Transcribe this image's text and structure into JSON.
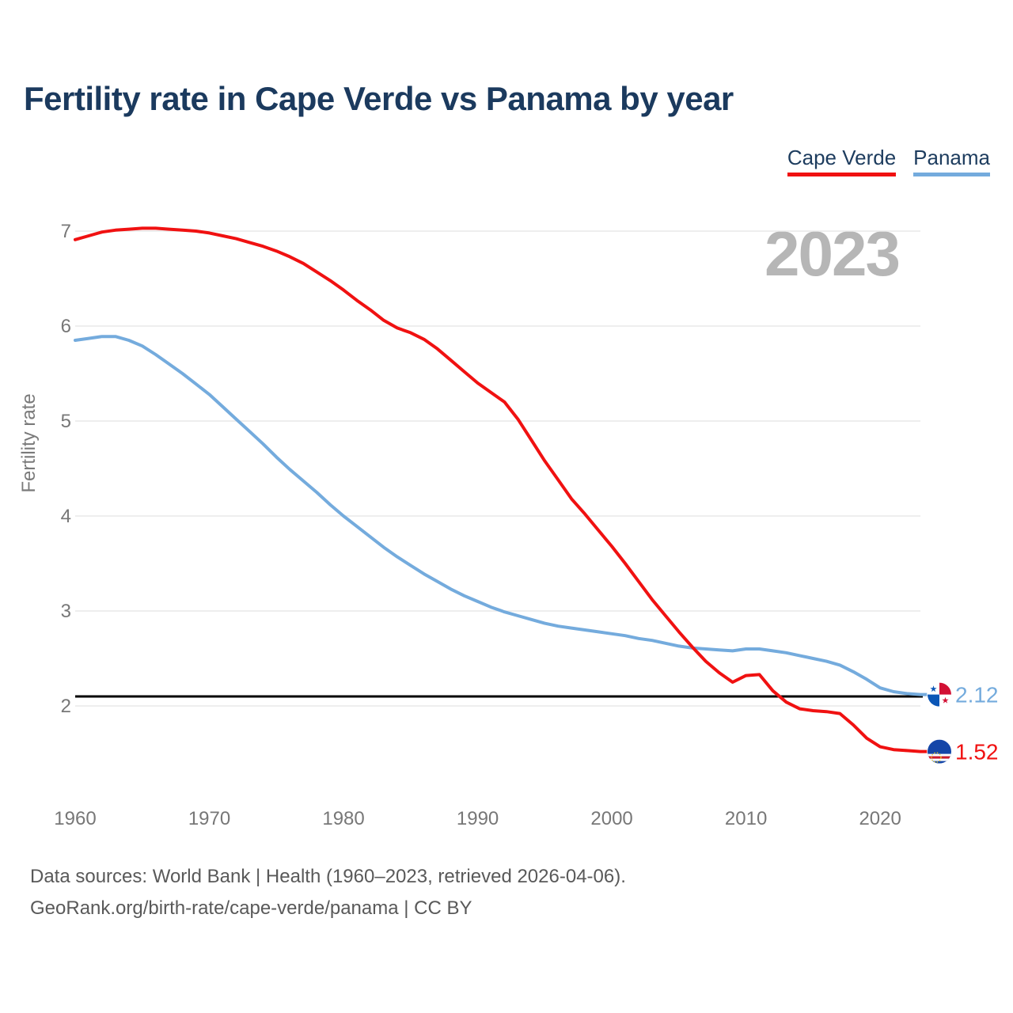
{
  "page": {
    "title": "Fertility rate in Cape Verde vs Panama by year",
    "watermark": "2023"
  },
  "legend": {
    "items": [
      {
        "label": "Cape Verde",
        "color": "#f01111"
      },
      {
        "label": "Panama",
        "color": "#74abdd"
      }
    ]
  },
  "chart_data": {
    "type": "line",
    "title": "Fertility rate in Cape Verde vs Panama by year",
    "xlabel": "",
    "ylabel": "Fertility rate",
    "ylim": [
      2,
      7
    ],
    "xlim": [
      1960,
      2023
    ],
    "yticks": [
      7,
      6,
      5,
      4,
      3,
      2
    ],
    "xticks": [
      1960,
      1970,
      1980,
      1990,
      2000,
      2010,
      2020
    ],
    "grid": "horizontal",
    "legend_position": "top-right",
    "watermark": "2023",
    "reference_line": {
      "value": 2.1,
      "color": "#000000"
    },
    "x": [
      1960,
      1961,
      1962,
      1963,
      1964,
      1965,
      1966,
      1967,
      1968,
      1969,
      1970,
      1971,
      1972,
      1973,
      1974,
      1975,
      1976,
      1977,
      1978,
      1979,
      1980,
      1981,
      1982,
      1983,
      1984,
      1985,
      1986,
      1987,
      1988,
      1989,
      1990,
      1991,
      1992,
      1993,
      1994,
      1995,
      1996,
      1997,
      1998,
      1999,
      2000,
      2001,
      2002,
      2003,
      2004,
      2005,
      2006,
      2007,
      2008,
      2009,
      2010,
      2011,
      2012,
      2013,
      2014,
      2015,
      2016,
      2017,
      2018,
      2019,
      2020,
      2021,
      2022,
      2023
    ],
    "series": [
      {
        "name": "Cape Verde",
        "color": "#f01111",
        "end_label": "1.52",
        "values": [
          6.91,
          6.95,
          6.99,
          7.01,
          7.02,
          7.03,
          7.03,
          7.02,
          7.01,
          7.0,
          6.98,
          6.95,
          6.92,
          6.88,
          6.84,
          6.79,
          6.73,
          6.66,
          6.57,
          6.48,
          6.38,
          6.27,
          6.17,
          6.06,
          5.98,
          5.93,
          5.86,
          5.76,
          5.64,
          5.52,
          5.4,
          5.3,
          5.2,
          5.02,
          4.8,
          4.58,
          4.38,
          4.18,
          4.02,
          3.85,
          3.68,
          3.5,
          3.31,
          3.12,
          2.95,
          2.78,
          2.62,
          2.47,
          2.35,
          2.25,
          2.32,
          2.33,
          2.16,
          2.04,
          1.97,
          1.95,
          1.94,
          1.92,
          1.8,
          1.66,
          1.57,
          1.54,
          1.53,
          1.52
        ]
      },
      {
        "name": "Panama",
        "color": "#74abdd",
        "end_label": "2.12",
        "values": [
          5.85,
          5.87,
          5.89,
          5.89,
          5.85,
          5.79,
          5.7,
          5.6,
          5.5,
          5.39,
          5.28,
          5.15,
          5.02,
          4.89,
          4.76,
          4.62,
          4.49,
          4.37,
          4.25,
          4.12,
          4.0,
          3.89,
          3.78,
          3.67,
          3.57,
          3.48,
          3.39,
          3.31,
          3.23,
          3.16,
          3.1,
          3.04,
          2.99,
          2.95,
          2.91,
          2.87,
          2.84,
          2.82,
          2.8,
          2.78,
          2.76,
          2.74,
          2.71,
          2.69,
          2.66,
          2.63,
          2.61,
          2.6,
          2.59,
          2.58,
          2.6,
          2.6,
          2.58,
          2.56,
          2.53,
          2.5,
          2.47,
          2.43,
          2.36,
          2.28,
          2.19,
          2.15,
          2.13,
          2.12
        ]
      }
    ]
  },
  "footer": {
    "line1": "Data sources: World Bank | Health (1960–2023, retrieved 2026-04-06).",
    "line2": "GeoRank.org/birth-rate/cape-verde/panama | CC BY"
  }
}
